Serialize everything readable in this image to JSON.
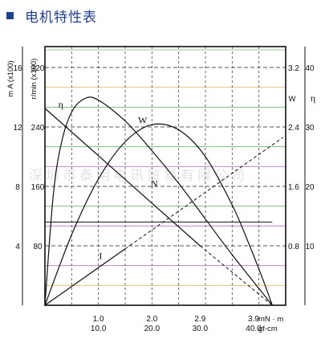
{
  "page": {
    "heading": "电机特性表",
    "watermark": "深圳市泰明电讯贸易有限公司"
  },
  "chart_data": {
    "type": "line",
    "x_primary": {
      "label": "mN · m",
      "ticks": [
        {
          "value": 1.0,
          "label": "1.0"
        },
        {
          "value": 2.0,
          "label": "2.0"
        },
        {
          "value": 2.9,
          "label": "2.9"
        },
        {
          "value": 3.9,
          "label": "3.9"
        }
      ],
      "range": [
        0,
        4.5
      ]
    },
    "x_secondary": {
      "label": "gf-cm",
      "ticks": [
        "10.0",
        "20.0",
        "30.0",
        "40.0"
      ]
    },
    "y_axes": {
      "current": {
        "label": "m A (x100)",
        "ticks": [
          "4",
          "8",
          "12",
          "16"
        ],
        "range": [
          0,
          16
        ]
      },
      "speed": {
        "label": "r/min (x100)",
        "ticks": [
          "80",
          "160",
          "240",
          "320"
        ],
        "range": [
          0,
          320
        ]
      },
      "power": {
        "label": "W",
        "ticks": [
          "0.8",
          "1.6",
          "2.4",
          "3.2"
        ],
        "range": [
          0,
          3.2
        ]
      },
      "efficiency": {
        "label": "η",
        "ticks": [
          "10",
          "20",
          "30",
          "40"
        ],
        "range": [
          0,
          40
        ]
      }
    },
    "series": [
      {
        "name": "N",
        "axis": "speed",
        "x": [
          0.0,
          2.9,
          4.25
        ],
        "y": [
          265,
          80,
          0
        ]
      },
      {
        "name": "I",
        "axis": "current",
        "x": [
          0.0,
          1.5,
          3.0,
          4.45
        ],
        "y": [
          0.0,
          3.8,
          7.6,
          11.3
        ]
      },
      {
        "name": "W",
        "axis": "power",
        "x": [
          0.0,
          0.5,
          1.0,
          1.5,
          2.0,
          2.5,
          3.0,
          3.5,
          3.8,
          4.1,
          4.25
        ],
        "y": [
          0.0,
          0.95,
          1.7,
          2.2,
          2.43,
          2.36,
          2.0,
          1.35,
          0.85,
          0.3,
          0.0
        ]
      },
      {
        "name": "η",
        "axis": "efficiency",
        "x": [
          0.0,
          0.15,
          0.3,
          0.5,
          0.75,
          1.0,
          1.5,
          2.0,
          2.5,
          3.0,
          3.5,
          4.25
        ],
        "y": [
          0.0,
          18,
          27,
          32.5,
          34.8,
          34.5,
          31,
          26,
          20.5,
          14.5,
          8.5,
          0.0
        ]
      }
    ],
    "reference_lines": [
      {
        "axis": "speed",
        "y": 0.0,
        "x_end": 4.25
      },
      {
        "axis": "current",
        "y": 5.6,
        "x_end": 4.25
      }
    ],
    "grid": true
  }
}
